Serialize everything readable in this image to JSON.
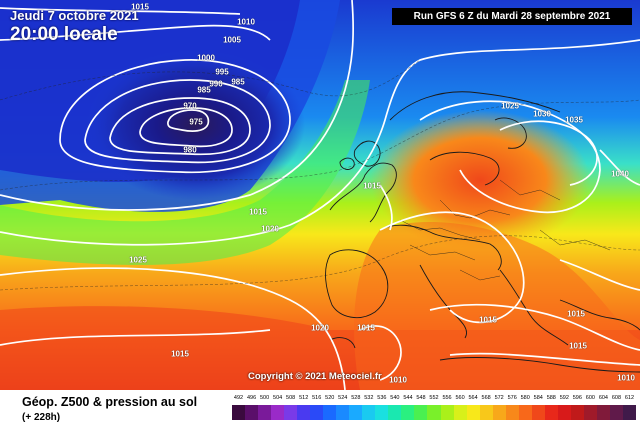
{
  "header": {
    "date_line": "Jeudi 7 octobre 2021",
    "time_line": "20:00 locale",
    "run_info": "Run GFS 6 Z du Mardi 28 septembre 2021"
  },
  "copyright": "Copyright © 2021 Meteociel.fr",
  "footer": {
    "title": "Géop. Z500 & pression au sol",
    "subtitle": "(+ 228h)"
  },
  "isobar_labels": [
    {
      "text": "1015"
    },
    {
      "text": "1010"
    },
    {
      "text": "1005"
    },
    {
      "text": "1000"
    },
    {
      "text": "995"
    },
    {
      "text": "985"
    },
    {
      "text": "990"
    },
    {
      "text": "985"
    },
    {
      "text": "970"
    },
    {
      "text": "975"
    },
    {
      "text": "980"
    },
    {
      "text": "1015"
    },
    {
      "text": "1015"
    },
    {
      "text": "1020"
    },
    {
      "text": "1025"
    },
    {
      "text": "1025"
    },
    {
      "text": "1030"
    },
    {
      "text": "1035"
    },
    {
      "text": "1040"
    },
    {
      "text": "1020"
    },
    {
      "text": "1015"
    },
    {
      "text": "1015"
    },
    {
      "text": "1015"
    },
    {
      "text": "1015"
    },
    {
      "text": "1010"
    },
    {
      "text": "1015"
    },
    {
      "text": "1010"
    }
  ],
  "scale": {
    "ticks": [
      "492",
      "496",
      "500",
      "504",
      "508",
      "512",
      "516",
      "520",
      "524",
      "528",
      "532",
      "536",
      "540",
      "544",
      "548",
      "552",
      "556",
      "560",
      "564",
      "568",
      "572",
      "576",
      "580",
      "584",
      "588",
      "592",
      "596",
      "600",
      "604",
      "608",
      "612"
    ],
    "colors": [
      "#3a0a3e",
      "#5a0f6a",
      "#7a1a9a",
      "#9a2ac8",
      "#7a3ae8",
      "#4a3af0",
      "#2a4af8",
      "#1a6aff",
      "#1a8aff",
      "#1aaaff",
      "#1acaf0",
      "#1ae0e0",
      "#1ae8b0",
      "#2af080",
      "#4af050",
      "#7af02a",
      "#aaf01a",
      "#d8f01a",
      "#f8e81a",
      "#f8c81a",
      "#f8a81a",
      "#f8881a",
      "#f8681a",
      "#f0481a",
      "#e8281a",
      "#d81a1a",
      "#c01a1a",
      "#a01a2a",
      "#801a3a",
      "#601a4a",
      "#401a4a"
    ]
  }
}
